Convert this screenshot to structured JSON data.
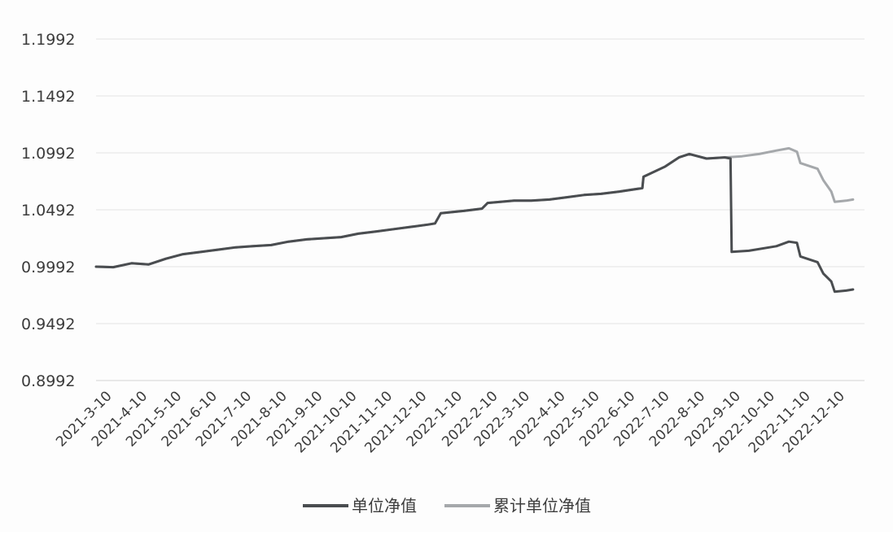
{
  "chart_data": {
    "type": "line",
    "title": "",
    "xlabel": "",
    "ylabel": "",
    "y_ticks": [
      "0.8992",
      "0.9492",
      "0.9992",
      "1.0492",
      "1.0992",
      "1.1492",
      "1.1992"
    ],
    "ylim": [
      0.8992,
      1.1992
    ],
    "x_ticks": [
      "2021-3-10",
      "2021-4-10",
      "2021-5-10",
      "2021-6-10",
      "2021-7-10",
      "2021-8-10",
      "2021-9-10",
      "2021-10-10",
      "2021-11-10",
      "2021-12-10",
      "2022-1-10",
      "2022-2-10",
      "2022-3-10",
      "2022-4-10",
      "2022-5-10",
      "2022-6-10",
      "2022-7-10",
      "2022-8-10",
      "2022-9-10",
      "2022-10-10",
      "2022-11-10",
      "2022-12-10"
    ],
    "grid": true,
    "legend_position": "bottom",
    "series": [
      {
        "name": "单位净值",
        "color": "#4a4d50",
        "points": [
          [
            "2021-3-10",
            0.9992
          ],
          [
            "2021-3-25",
            0.9988
          ],
          [
            "2021-4-10",
            1.0022
          ],
          [
            "2021-4-25",
            1.0012
          ],
          [
            "2021-5-10",
            1.0062
          ],
          [
            "2021-5-25",
            1.0102
          ],
          [
            "2021-6-10",
            1.0122
          ],
          [
            "2021-6-25",
            1.0142
          ],
          [
            "2021-7-10",
            1.0162
          ],
          [
            "2021-7-25",
            1.0172
          ],
          [
            "2021-8-10",
            1.0182
          ],
          [
            "2021-8-25",
            1.0212
          ],
          [
            "2021-9-10",
            1.0232
          ],
          [
            "2021-9-25",
            1.0242
          ],
          [
            "2021-10-10",
            1.0252
          ],
          [
            "2021-10-25",
            1.0282
          ],
          [
            "2021-11-10",
            1.0302
          ],
          [
            "2021-11-25",
            1.0322
          ],
          [
            "2021-12-10",
            1.0342
          ],
          [
            "2021-12-25",
            1.0362
          ],
          [
            "2021-12-31",
            1.0372
          ],
          [
            "2022-1-5",
            1.0462
          ],
          [
            "2022-1-25",
            1.0482
          ],
          [
            "2022-2-10",
            1.0502
          ],
          [
            "2022-2-15",
            1.0552
          ],
          [
            "2022-3-10",
            1.0572
          ],
          [
            "2022-3-25",
            1.0572
          ],
          [
            "2022-4-10",
            1.0582
          ],
          [
            "2022-4-25",
            1.0602
          ],
          [
            "2022-5-10",
            1.0622
          ],
          [
            "2022-5-25",
            1.0632
          ],
          [
            "2022-6-10",
            1.0652
          ],
          [
            "2022-6-30",
            1.0682
          ],
          [
            "2022-7-1",
            1.0782
          ],
          [
            "2022-7-20",
            1.0872
          ],
          [
            "2022-8-1",
            1.0952
          ],
          [
            "2022-8-10",
            1.0982
          ],
          [
            "2022-8-25",
            1.0942
          ],
          [
            "2022-9-10",
            1.0952
          ],
          [
            "2022-9-15",
            1.0942
          ],
          [
            "2022-9-16",
            1.0122
          ],
          [
            "2022-10-1",
            1.0132
          ],
          [
            "2022-10-25",
            1.0172
          ],
          [
            "2022-11-5",
            1.0212
          ],
          [
            "2022-11-12",
            1.0202
          ],
          [
            "2022-11-15",
            1.0082
          ],
          [
            "2022-11-30",
            1.0032
          ],
          [
            "2022-12-5",
            0.9932
          ],
          [
            "2022-12-12",
            0.9862
          ],
          [
            "2022-12-15",
            0.9772
          ],
          [
            "2022-12-25",
            0.9782
          ],
          [
            "2022-12-31",
            0.9792
          ]
        ]
      },
      {
        "name": "累计单位净值",
        "color": "#a5a8ab",
        "points": [
          [
            "2021-3-10",
            0.9992
          ],
          [
            "2021-3-25",
            0.9988
          ],
          [
            "2021-4-10",
            1.0022
          ],
          [
            "2021-4-25",
            1.0012
          ],
          [
            "2021-5-10",
            1.0062
          ],
          [
            "2021-5-25",
            1.0102
          ],
          [
            "2021-6-10",
            1.0122
          ],
          [
            "2021-6-25",
            1.0142
          ],
          [
            "2021-7-10",
            1.0162
          ],
          [
            "2021-7-25",
            1.0172
          ],
          [
            "2021-8-10",
            1.0182
          ],
          [
            "2021-8-25",
            1.0212
          ],
          [
            "2021-9-10",
            1.0232
          ],
          [
            "2021-9-25",
            1.0242
          ],
          [
            "2021-10-10",
            1.0252
          ],
          [
            "2021-10-25",
            1.0282
          ],
          [
            "2021-11-10",
            1.0302
          ],
          [
            "2021-11-25",
            1.0322
          ],
          [
            "2021-12-10",
            1.0342
          ],
          [
            "2021-12-25",
            1.0362
          ],
          [
            "2021-12-31",
            1.0372
          ],
          [
            "2022-1-5",
            1.0462
          ],
          [
            "2022-1-25",
            1.0482
          ],
          [
            "2022-2-10",
            1.0502
          ],
          [
            "2022-2-15",
            1.0552
          ],
          [
            "2022-3-10",
            1.0572
          ],
          [
            "2022-3-25",
            1.0572
          ],
          [
            "2022-4-10",
            1.0582
          ],
          [
            "2022-4-25",
            1.0602
          ],
          [
            "2022-5-10",
            1.0622
          ],
          [
            "2022-5-25",
            1.0632
          ],
          [
            "2022-6-10",
            1.0652
          ],
          [
            "2022-6-30",
            1.0682
          ],
          [
            "2022-7-1",
            1.0782
          ],
          [
            "2022-7-20",
            1.0872
          ],
          [
            "2022-8-1",
            1.0952
          ],
          [
            "2022-8-10",
            1.0982
          ],
          [
            "2022-8-25",
            1.0942
          ],
          [
            "2022-9-10",
            1.0952
          ],
          [
            "2022-9-25",
            1.0962
          ],
          [
            "2022-10-10",
            1.0982
          ],
          [
            "2022-10-25",
            1.1012
          ],
          [
            "2022-11-5",
            1.1032
          ],
          [
            "2022-11-12",
            1.1002
          ],
          [
            "2022-11-15",
            1.0902
          ],
          [
            "2022-11-30",
            1.0852
          ],
          [
            "2022-12-5",
            1.0752
          ],
          [
            "2022-12-12",
            1.0652
          ],
          [
            "2022-12-15",
            1.0562
          ],
          [
            "2022-12-25",
            1.0572
          ],
          [
            "2022-12-31",
            1.0582
          ]
        ]
      }
    ]
  }
}
